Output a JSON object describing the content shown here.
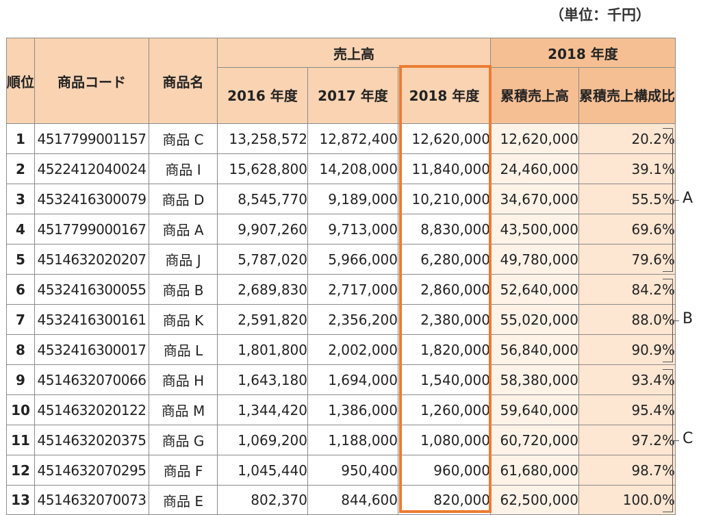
{
  "unit_note": "（単位：千円）",
  "header": {
    "rank": "順位",
    "code": "商品コード",
    "name": "商品名",
    "sales_group": "売上高",
    "fy2018_group": "2018 年度",
    "y2016": "2016 年度",
    "y2017": "2017 年度",
    "y2018": "2018 年度",
    "cumulative": "累積売上高",
    "ratio": "累積売上構成比"
  },
  "rows": [
    {
      "rank": "1",
      "code": "4517799001157",
      "name": "商品 C",
      "y2016": "13,258,572",
      "y2017": "12,872,400",
      "y2018": "12,620,000",
      "cumulative": "12,620,000",
      "ratio": "20.2%"
    },
    {
      "rank": "2",
      "code": "4522412040024",
      "name": "商品 I",
      "y2016": "15,628,800",
      "y2017": "14,208,000",
      "y2018": "11,840,000",
      "cumulative": "24,460,000",
      "ratio": "39.1%"
    },
    {
      "rank": "3",
      "code": "4532416300079",
      "name": "商品 D",
      "y2016": "8,545,770",
      "y2017": "9,189,000",
      "y2018": "10,210,000",
      "cumulative": "34,670,000",
      "ratio": "55.5%"
    },
    {
      "rank": "4",
      "code": "4517799000167",
      "name": "商品 A",
      "y2016": "9,907,260",
      "y2017": "9,713,000",
      "y2018": "8,830,000",
      "cumulative": "43,500,000",
      "ratio": "69.6%"
    },
    {
      "rank": "5",
      "code": "4514632020207",
      "name": "商品 J",
      "y2016": "5,787,020",
      "y2017": "5,966,000",
      "y2018": "6,280,000",
      "cumulative": "49,780,000",
      "ratio": "79.6%"
    },
    {
      "rank": "6",
      "code": "4532416300055",
      "name": "商品 B",
      "y2016": "2,689,830",
      "y2017": "2,717,000",
      "y2018": "2,860,000",
      "cumulative": "52,640,000",
      "ratio": "84.2%"
    },
    {
      "rank": "7",
      "code": "4532416300161",
      "name": "商品 K",
      "y2016": "2,591,820",
      "y2017": "2,356,200",
      "y2018": "2,380,000",
      "cumulative": "55,020,000",
      "ratio": "88.0%"
    },
    {
      "rank": "8",
      "code": "4532416300017",
      "name": "商品 L",
      "y2016": "1,801,800",
      "y2017": "2,002,000",
      "y2018": "1,820,000",
      "cumulative": "56,840,000",
      "ratio": "90.9%"
    },
    {
      "rank": "9",
      "code": "4514632070066",
      "name": "商品 H",
      "y2016": "1,643,180",
      "y2017": "1,694,000",
      "y2018": "1,540,000",
      "cumulative": "58,380,000",
      "ratio": "93.4%"
    },
    {
      "rank": "10",
      "code": "4514632020122",
      "name": "商品 M",
      "y2016": "1,344,420",
      "y2017": "1,386,000",
      "y2018": "1,260,000",
      "cumulative": "59,640,000",
      "ratio": "95.4%"
    },
    {
      "rank": "11",
      "code": "4514632020375",
      "name": "商品 G",
      "y2016": "1,069,200",
      "y2017": "1,188,000",
      "y2018": "1,080,000",
      "cumulative": "60,720,000",
      "ratio": "97.2%"
    },
    {
      "rank": "12",
      "code": "4514632070295",
      "name": "商品 F",
      "y2016": "1,045,440",
      "y2017": "950,400",
      "y2018": "960,000",
      "cumulative": "61,680,000",
      "ratio": "98.7%"
    },
    {
      "rank": "13",
      "code": "4514632070073",
      "name": "商品 E",
      "y2016": "802,370",
      "y2017": "844,600",
      "y2018": "820,000",
      "cumulative": "62,500,000",
      "ratio": "100.0%"
    }
  ],
  "groups": [
    {
      "label": "A",
      "first_rank": 1,
      "last_rank": 5
    },
    {
      "label": "B",
      "first_rank": 6,
      "last_rank": 8
    },
    {
      "label": "C",
      "first_rank": 9,
      "last_rank": 13
    }
  ],
  "colors": {
    "header_fill": "#f9d3b2",
    "header_fill_dark": "#f6bf93",
    "highlight_border": "#ec7b31",
    "cumulative_fill": "#fff3e8",
    "ratio_fill": "#fde6d2"
  }
}
